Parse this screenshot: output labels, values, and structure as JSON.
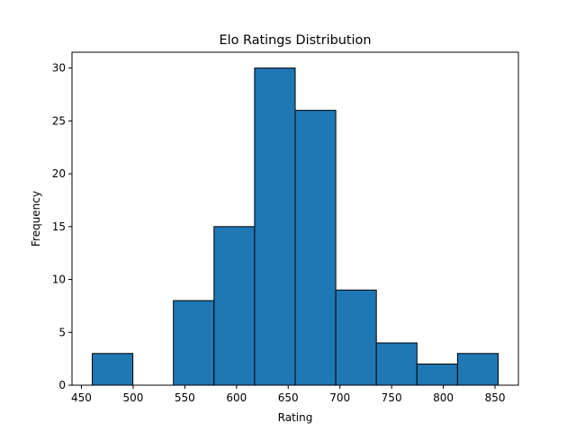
{
  "chart_data": {
    "type": "bar",
    "title": "Elo Ratings Distribution",
    "xlabel": "Rating",
    "ylabel": "Frequency",
    "bins": [
      {
        "start": 460.5,
        "end": 499.75,
        "count": 3
      },
      {
        "start": 499.75,
        "end": 539.0,
        "count": 0
      },
      {
        "start": 539.0,
        "end": 578.25,
        "count": 8
      },
      {
        "start": 578.25,
        "end": 617.5,
        "count": 15
      },
      {
        "start": 617.5,
        "end": 656.75,
        "count": 30
      },
      {
        "start": 656.75,
        "end": 696.0,
        "count": 26
      },
      {
        "start": 696.0,
        "end": 735.25,
        "count": 9
      },
      {
        "start": 735.25,
        "end": 774.5,
        "count": 4
      },
      {
        "start": 774.5,
        "end": 813.75,
        "count": 2
      },
      {
        "start": 813.75,
        "end": 853.0,
        "count": 3
      }
    ],
    "xlim": [
      440.9,
      872.6
    ],
    "ylim": [
      0,
      31.5
    ],
    "xticks": [
      450,
      500,
      550,
      600,
      650,
      700,
      750,
      800,
      850
    ],
    "yticks": [
      0,
      5,
      10,
      15,
      20,
      25,
      30
    ],
    "bar_color": "#1f77b4",
    "edge_color": "#000000",
    "grid": false,
    "legend": "none"
  }
}
